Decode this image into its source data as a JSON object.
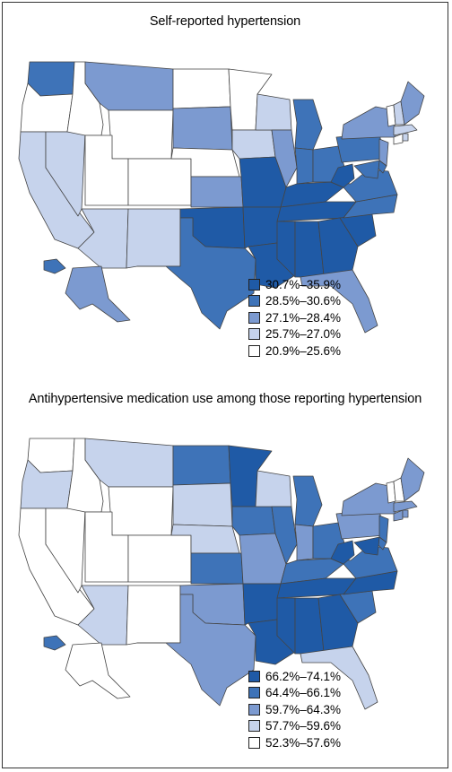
{
  "colors": {
    "c1": "#1f5aa6",
    "c2": "#3e73b8",
    "c3": "#7c9ad0",
    "c4": "#c6d3ec",
    "c5": "#ffffff",
    "border": "#444444"
  },
  "maps": [
    {
      "title": "Self-reported hypertension",
      "legend": [
        {
          "label": "30.7%–35.9%",
          "class": "c1"
        },
        {
          "label": "28.5%–30.6%",
          "class": "c2"
        },
        {
          "label": "27.1%–28.4%",
          "class": "c3"
        },
        {
          "label": "25.7%–27.0%",
          "class": "c4"
        },
        {
          "label": "20.9%–25.6%",
          "class": "c5"
        }
      ],
      "states": {
        "WA": "c2",
        "OR": "c5",
        "CA": "c4",
        "NV": "c4",
        "ID": "c5",
        "MT": "c3",
        "WY": "c5",
        "UT": "c5",
        "AZ": "c4",
        "CO": "c5",
        "NM": "c4",
        "ND": "c5",
        "SD": "c3",
        "NE": "c5",
        "KS": "c3",
        "OK": "c1",
        "TX": "c2",
        "MN": "c5",
        "IA": "c4",
        "MO": "c1",
        "AR": "c1",
        "LA": "c1",
        "WI": "c4",
        "IL": "c3",
        "MI": "c2",
        "IN": "c2",
        "OH": "c2",
        "KY": "c1",
        "TN": "c1",
        "MS": "c1",
        "AL": "c1",
        "GA": "c1",
        "FL": "c3",
        "SC": "c1",
        "NC": "c2",
        "VA": "c2",
        "WV": "c1",
        "PA": "c2",
        "NY": "c3",
        "ME": "c3",
        "NH": "c4",
        "VT": "c5",
        "MA": "c4",
        "CT": "c5",
        "RI": "c4",
        "NJ": "c3",
        "DE": "c2",
        "MD": "c2",
        "AK": "c3",
        "HI": "c2"
      }
    },
    {
      "title": "Antihypertensive medication use among those reporting hypertension",
      "legend": [
        {
          "label": "66.2%–74.1%",
          "class": "c1"
        },
        {
          "label": "64.4%–66.1%",
          "class": "c2"
        },
        {
          "label": "59.7%–64.3%",
          "class": "c3"
        },
        {
          "label": "57.7%–59.6%",
          "class": "c4"
        },
        {
          "label": "52.3%–57.6%",
          "class": "c5"
        }
      ],
      "states": {
        "WA": "c5",
        "OR": "c4",
        "CA": "c5",
        "NV": "c5",
        "ID": "c5",
        "MT": "c4",
        "WY": "c5",
        "UT": "c5",
        "AZ": "c4",
        "CO": "c5",
        "NM": "c5",
        "ND": "c2",
        "SD": "c4",
        "NE": "c4",
        "KS": "c2",
        "OK": "c3",
        "TX": "c3",
        "MN": "c1",
        "IA": "c2",
        "MO": "c3",
        "AR": "c1",
        "LA": "c1",
        "WI": "c4",
        "IL": "c2",
        "MI": "c2",
        "IN": "c3",
        "OH": "c2",
        "KY": "c2",
        "TN": "c1",
        "MS": "c1",
        "AL": "c1",
        "GA": "c1",
        "FL": "c4",
        "SC": "c2",
        "NC": "c1",
        "VA": "c2",
        "WV": "c1",
        "PA": "c3",
        "NY": "c3",
        "ME": "c3",
        "NH": "c5",
        "VT": "c5",
        "MA": "c3",
        "CT": "c3",
        "RI": "c3",
        "NJ": "c2",
        "DE": "c2",
        "MD": "c1",
        "AK": "c5",
        "HI": "c2"
      }
    }
  ]
}
